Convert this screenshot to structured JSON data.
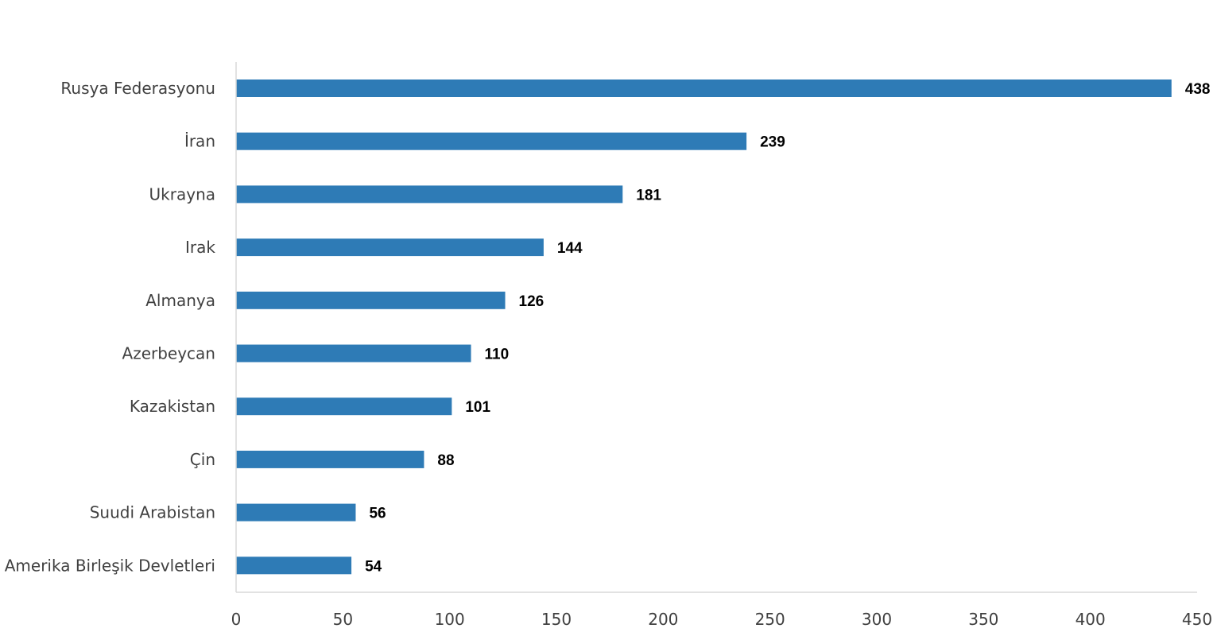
{
  "chart_data": {
    "type": "bar",
    "orientation": "horizontal",
    "categories": [
      "Rusya Federasyonu",
      "İran",
      "Ukrayna",
      "Irak",
      "Almanya",
      "Azerbeycan",
      "Kazakistan",
      "Çin",
      "Suudi Arabistan",
      "Amerika Birleşik Devletleri"
    ],
    "values": [
      438,
      239,
      181,
      144,
      126,
      110,
      101,
      88,
      56,
      54
    ],
    "value_labels": [
      "438",
      "239",
      "181",
      "144",
      "126",
      "110",
      "101",
      "88",
      "56",
      "54"
    ],
    "xlim": [
      0,
      450
    ],
    "x_ticks": [
      0,
      50,
      100,
      150,
      200,
      250,
      300,
      350,
      400,
      450
    ],
    "x_tick_labels": [
      "0",
      "50",
      "100",
      "150",
      "200",
      "250",
      "300",
      "350",
      "400",
      "450"
    ],
    "title": "",
    "xlabel": "",
    "ylabel": "",
    "grid": false,
    "legend": false,
    "colors": {
      "bar": "#2e7bb6",
      "axis": "#d9d9d9"
    }
  }
}
